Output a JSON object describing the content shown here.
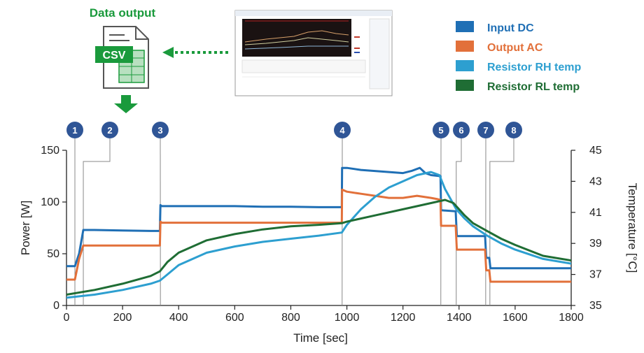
{
  "header": {
    "data_output_label": "Data output",
    "csv_label": "CSV"
  },
  "colors": {
    "input_dc": "#1f6fb5",
    "output_ac": "#e2703a",
    "resistor_rh": "#2d9fd0",
    "resistor_rl": "#1f6d34",
    "accent_green": "#1a9a3c",
    "badge": "#2f5596"
  },
  "icons": {
    "csv_file": "csv-file-icon",
    "down_arrow": "down-arrow-icon",
    "dotted_arrow": "dotted-left-arrow-icon",
    "app_screenshot": "app-window-thumbnail"
  },
  "markers": [
    {
      "num": "1",
      "time": 30
    },
    {
      "num": "2",
      "time": 60
    },
    {
      "num": "3",
      "time": 335
    },
    {
      "num": "4",
      "time": 983
    },
    {
      "num": "5",
      "time": 1335
    },
    {
      "num": "6",
      "time": 1390
    },
    {
      "num": "7",
      "time": 1495
    },
    {
      "num": "8",
      "time": 1510
    }
  ],
  "chart_data": {
    "type": "line",
    "xlabel": "Time [sec]",
    "ylabel": "Power [W]",
    "y2label": "Temperature [°C]",
    "xlim": [
      0,
      1800
    ],
    "ylim": [
      0,
      150
    ],
    "y2lim": [
      35,
      45
    ],
    "xticks": [
      "0",
      "200",
      "400",
      "600",
      "800",
      "1000",
      "1200",
      "1400",
      "1600",
      "1800"
    ],
    "yticks": [
      "0",
      "50",
      "100",
      "150"
    ],
    "y2ticks": [
      "35",
      "37",
      "39",
      "41",
      "43",
      "45"
    ],
    "grid": false,
    "legend_position": "top-right",
    "series": [
      {
        "name": "Input DC",
        "axis": "left",
        "color": "#1f6fb5",
        "points": [
          [
            0,
            38
          ],
          [
            28,
            38
          ],
          [
            30,
            38
          ],
          [
            45,
            50
          ],
          [
            60,
            73
          ],
          [
            100,
            73
          ],
          [
            200,
            72.5
          ],
          [
            300,
            72
          ],
          [
            333,
            72
          ],
          [
            335,
            97
          ],
          [
            340,
            96
          ],
          [
            400,
            96
          ],
          [
            500,
            96
          ],
          [
            600,
            96
          ],
          [
            700,
            95.5
          ],
          [
            800,
            95.5
          ],
          [
            900,
            95
          ],
          [
            982,
            95
          ],
          [
            983,
            133
          ],
          [
            1000,
            133
          ],
          [
            1050,
            131
          ],
          [
            1100,
            130
          ],
          [
            1150,
            129
          ],
          [
            1200,
            128
          ],
          [
            1230,
            130
          ],
          [
            1260,
            133
          ],
          [
            1280,
            128
          ],
          [
            1300,
            126
          ],
          [
            1334,
            125
          ],
          [
            1336,
            92
          ],
          [
            1388,
            91
          ],
          [
            1392,
            67
          ],
          [
            1493,
            67
          ],
          [
            1497,
            46
          ],
          [
            1508,
            46
          ],
          [
            1512,
            36
          ],
          [
            1600,
            36
          ],
          [
            1700,
            36
          ],
          [
            1800,
            36
          ]
        ]
      },
      {
        "name": "Output AC",
        "axis": "left",
        "color": "#e2703a",
        "points": [
          [
            0,
            25
          ],
          [
            28,
            25
          ],
          [
            30,
            25
          ],
          [
            45,
            45
          ],
          [
            60,
            58
          ],
          [
            100,
            58
          ],
          [
            200,
            58
          ],
          [
            300,
            58
          ],
          [
            333,
            58
          ],
          [
            335,
            81
          ],
          [
            340,
            80
          ],
          [
            400,
            80
          ],
          [
            500,
            80
          ],
          [
            600,
            80
          ],
          [
            700,
            80
          ],
          [
            800,
            80
          ],
          [
            900,
            80
          ],
          [
            982,
            80
          ],
          [
            983,
            112
          ],
          [
            1000,
            110
          ],
          [
            1050,
            108
          ],
          [
            1100,
            106
          ],
          [
            1150,
            104
          ],
          [
            1200,
            104
          ],
          [
            1250,
            106
          ],
          [
            1300,
            104
          ],
          [
            1320,
            103
          ],
          [
            1334,
            102
          ],
          [
            1336,
            77
          ],
          [
            1388,
            77
          ],
          [
            1392,
            54
          ],
          [
            1493,
            54
          ],
          [
            1497,
            34
          ],
          [
            1508,
            34
          ],
          [
            1512,
            23
          ],
          [
            1600,
            23
          ],
          [
            1700,
            23
          ],
          [
            1800,
            23
          ]
        ]
      },
      {
        "name": "Resistor RH temp",
        "axis": "right",
        "color": "#2d9fd0",
        "points": [
          [
            0,
            35.5
          ],
          [
            100,
            35.7
          ],
          [
            200,
            36
          ],
          [
            300,
            36.4
          ],
          [
            333,
            36.6
          ],
          [
            360,
            37.0
          ],
          [
            400,
            37.6
          ],
          [
            500,
            38.4
          ],
          [
            600,
            38.8
          ],
          [
            700,
            39.1
          ],
          [
            800,
            39.3
          ],
          [
            900,
            39.5
          ],
          [
            982,
            39.7
          ],
          [
            1000,
            40.2
          ],
          [
            1050,
            41.2
          ],
          [
            1100,
            42.0
          ],
          [
            1150,
            42.6
          ],
          [
            1200,
            43.0
          ],
          [
            1250,
            43.4
          ],
          [
            1300,
            43.6
          ],
          [
            1330,
            43.4
          ],
          [
            1350,
            42.5
          ],
          [
            1390,
            41.2
          ],
          [
            1420,
            40.6
          ],
          [
            1450,
            40.1
          ],
          [
            1500,
            39.5
          ],
          [
            1550,
            39.0
          ],
          [
            1600,
            38.6
          ],
          [
            1700,
            38.0
          ],
          [
            1800,
            37.7
          ]
        ]
      },
      {
        "name": "Resistor RL temp",
        "axis": "right",
        "color": "#1f6d34",
        "points": [
          [
            0,
            35.7
          ],
          [
            100,
            36.0
          ],
          [
            200,
            36.4
          ],
          [
            300,
            36.9
          ],
          [
            333,
            37.2
          ],
          [
            360,
            37.8
          ],
          [
            400,
            38.4
          ],
          [
            500,
            39.2
          ],
          [
            600,
            39.6
          ],
          [
            700,
            39.9
          ],
          [
            800,
            40.1
          ],
          [
            900,
            40.2
          ],
          [
            982,
            40.3
          ],
          [
            1000,
            40.4
          ],
          [
            1100,
            40.8
          ],
          [
            1200,
            41.2
          ],
          [
            1300,
            41.6
          ],
          [
            1350,
            41.8
          ],
          [
            1380,
            41.6
          ],
          [
            1420,
            40.8
          ],
          [
            1450,
            40.3
          ],
          [
            1500,
            39.8
          ],
          [
            1550,
            39.3
          ],
          [
            1600,
            38.9
          ],
          [
            1700,
            38.2
          ],
          [
            1800,
            37.9
          ]
        ]
      }
    ]
  }
}
